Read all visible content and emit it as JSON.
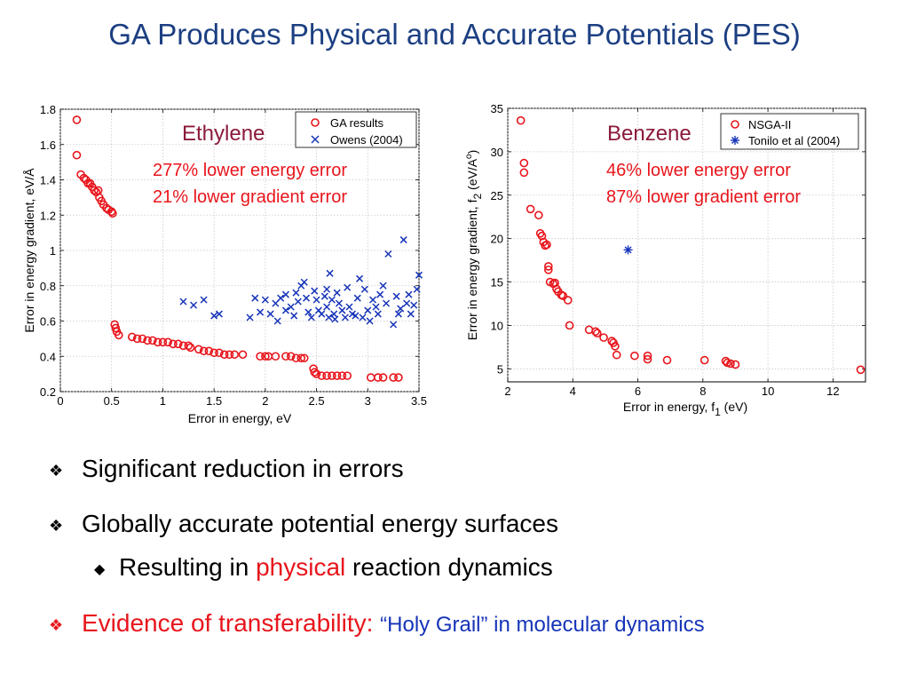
{
  "slide": {
    "title": "GA Produces Physical and Accurate Potentials (PES)"
  },
  "bullets": [
    {
      "text": "Significant reduction in errors"
    },
    {
      "text": "Globally accurate potential energy surfaces"
    },
    {
      "sub_pre": "Resulting in ",
      "sub_highlight": "physical",
      "sub_post": " reaction dynamics"
    },
    {
      "red_text": "Evidence of transferability:",
      "blue_text": "“Holy Grail” in molecular dynamics"
    }
  ],
  "colors": {
    "title": "#1c3f82",
    "red": "#e8151c",
    "blue": "#1634b8",
    "ga_marker": "#e8151c",
    "ref_marker": "#1634b8"
  },
  "chart_data": [
    {
      "type": "scatter",
      "name_label": "Ethylene",
      "annotations": [
        "277% lower energy error",
        "21% lower gradient error"
      ],
      "xlabel": "Error in energy, eV",
      "ylabel": "Error in energy gradient, eV/Å",
      "xlim": [
        0,
        3.5
      ],
      "ylim": [
        0.2,
        1.8
      ],
      "xticks": [
        "0",
        "0.5",
        "1",
        "1.5",
        "2",
        "2.5",
        "3",
        "3.5"
      ],
      "yticks": [
        "0.2",
        "0.4",
        "0.6",
        "0.8",
        "1",
        "1.2",
        "1.4",
        "1.6",
        "1.8"
      ],
      "grid": true,
      "legend_position": "top-right",
      "series": [
        {
          "name": "GA results",
          "marker": "circle",
          "color": "#e8151c",
          "points": [
            [
              0.16,
              1.74
            ],
            [
              0.16,
              1.54
            ],
            [
              0.2,
              1.43
            ],
            [
              0.23,
              1.41
            ],
            [
              0.25,
              1.4
            ],
            [
              0.27,
              1.38
            ],
            [
              0.29,
              1.38
            ],
            [
              0.31,
              1.36
            ],
            [
              0.33,
              1.34
            ],
            [
              0.35,
              1.33
            ],
            [
              0.37,
              1.34
            ],
            [
              0.38,
              1.3
            ],
            [
              0.4,
              1.28
            ],
            [
              0.42,
              1.26
            ],
            [
              0.45,
              1.24
            ],
            [
              0.47,
              1.23
            ],
            [
              0.5,
              1.22
            ],
            [
              0.51,
              1.21
            ],
            [
              0.53,
              0.58
            ],
            [
              0.54,
              0.56
            ],
            [
              0.55,
              0.54
            ],
            [
              0.57,
              0.52
            ],
            [
              0.7,
              0.51
            ],
            [
              0.75,
              0.5
            ],
            [
              0.8,
              0.5
            ],
            [
              0.85,
              0.49
            ],
            [
              0.9,
              0.49
            ],
            [
              0.95,
              0.48
            ],
            [
              1.0,
              0.48
            ],
            [
              1.05,
              0.48
            ],
            [
              1.1,
              0.47
            ],
            [
              1.15,
              0.47
            ],
            [
              1.2,
              0.46
            ],
            [
              1.25,
              0.46
            ],
            [
              1.27,
              0.45
            ],
            [
              1.35,
              0.44
            ],
            [
              1.4,
              0.43
            ],
            [
              1.45,
              0.43
            ],
            [
              1.5,
              0.42
            ],
            [
              1.55,
              0.42
            ],
            [
              1.6,
              0.41
            ],
            [
              1.65,
              0.41
            ],
            [
              1.7,
              0.41
            ],
            [
              1.78,
              0.41
            ],
            [
              1.95,
              0.4
            ],
            [
              2.0,
              0.4
            ],
            [
              2.03,
              0.4
            ],
            [
              2.1,
              0.4
            ],
            [
              2.2,
              0.4
            ],
            [
              2.25,
              0.4
            ],
            [
              2.3,
              0.39
            ],
            [
              2.35,
              0.39
            ],
            [
              2.38,
              0.39
            ],
            [
              2.47,
              0.33
            ],
            [
              2.48,
              0.31
            ],
            [
              2.5,
              0.3
            ],
            [
              2.55,
              0.29
            ],
            [
              2.6,
              0.29
            ],
            [
              2.65,
              0.29
            ],
            [
              2.7,
              0.29
            ],
            [
              2.75,
              0.29
            ],
            [
              2.8,
              0.29
            ],
            [
              3.03,
              0.28
            ],
            [
              3.1,
              0.28
            ],
            [
              3.15,
              0.28
            ],
            [
              3.25,
              0.28
            ],
            [
              3.3,
              0.28
            ]
          ]
        },
        {
          "name": "Owens (2004)",
          "marker": "x",
          "color": "#1634b8",
          "points": [
            [
              1.2,
              0.71
            ],
            [
              1.3,
              0.69
            ],
            [
              1.4,
              0.72
            ],
            [
              1.5,
              0.63
            ],
            [
              1.55,
              0.64
            ],
            [
              1.85,
              0.62
            ],
            [
              1.9,
              0.73
            ],
            [
              1.95,
              0.65
            ],
            [
              2.0,
              0.72
            ],
            [
              2.05,
              0.64
            ],
            [
              2.1,
              0.7
            ],
            [
              2.12,
              0.6
            ],
            [
              2.15,
              0.73
            ],
            [
              2.2,
              0.66
            ],
            [
              2.2,
              0.75
            ],
            [
              2.25,
              0.68
            ],
            [
              2.28,
              0.63
            ],
            [
              2.3,
              0.76
            ],
            [
              2.32,
              0.71
            ],
            [
              2.35,
              0.8
            ],
            [
              2.38,
              0.82
            ],
            [
              2.4,
              0.73
            ],
            [
              2.42,
              0.65
            ],
            [
              2.45,
              0.62
            ],
            [
              2.48,
              0.77
            ],
            [
              2.5,
              0.72
            ],
            [
              2.52,
              0.66
            ],
            [
              2.55,
              0.64
            ],
            [
              2.58,
              0.74
            ],
            [
              2.6,
              0.78
            ],
            [
              2.6,
              0.68
            ],
            [
              2.62,
              0.62
            ],
            [
              2.63,
              0.87
            ],
            [
              2.65,
              0.72
            ],
            [
              2.67,
              0.64
            ],
            [
              2.68,
              0.61
            ],
            [
              2.7,
              0.76
            ],
            [
              2.72,
              0.7
            ],
            [
              2.75,
              0.66
            ],
            [
              2.78,
              0.62
            ],
            [
              2.8,
              0.79
            ],
            [
              2.82,
              0.68
            ],
            [
              2.85,
              0.64
            ],
            [
              2.88,
              0.63
            ],
            [
              2.9,
              0.73
            ],
            [
              2.92,
              0.84
            ],
            [
              2.95,
              0.62
            ],
            [
              2.97,
              0.78
            ],
            [
              3.0,
              0.66
            ],
            [
              3.02,
              0.6
            ],
            [
              3.05,
              0.72
            ],
            [
              3.08,
              0.68
            ],
            [
              3.1,
              0.64
            ],
            [
              3.12,
              0.75
            ],
            [
              3.15,
              0.8
            ],
            [
              3.18,
              0.7
            ],
            [
              3.2,
              0.98
            ],
            [
              3.25,
              0.58
            ],
            [
              3.28,
              0.74
            ],
            [
              3.3,
              0.64
            ],
            [
              3.32,
              0.67
            ],
            [
              3.35,
              1.06
            ],
            [
              3.38,
              0.7
            ],
            [
              3.4,
              0.75
            ],
            [
              3.42,
              0.64
            ],
            [
              3.45,
              0.69
            ],
            [
              3.48,
              0.78
            ],
            [
              3.5,
              0.86
            ]
          ]
        }
      ]
    },
    {
      "type": "scatter",
      "name_label": "Benzene",
      "annotations": [
        "46% lower energy error",
        "87% lower gradient error"
      ],
      "xlabel_main": "Error in energy, f",
      "xlabel_sub": "1",
      "xlabel_post": " (eV)",
      "ylabel_main": "Error in energy gradient, f",
      "ylabel_sub": "2",
      "ylabel_post": " (eV/A",
      "ylabel_sup": "o",
      "ylabel_end": ")",
      "xlim": [
        2,
        13
      ],
      "ylim": [
        3.5,
        35
      ],
      "xticks_values": [
        2,
        4,
        6,
        8,
        10,
        12
      ],
      "xticks": [
        "2",
        "4",
        "6",
        "8",
        "10",
        "12"
      ],
      "yticks_values": [
        5,
        10,
        15,
        20,
        25,
        30,
        35
      ],
      "yticks": [
        "5",
        "10",
        "15",
        "20",
        "25",
        "30",
        "35"
      ],
      "grid": true,
      "legend_position": "top-right",
      "series": [
        {
          "name": "NSGA-II",
          "marker": "circle",
          "color": "#e8151c",
          "points": [
            [
              2.4,
              33.6
            ],
            [
              2.5,
              28.7
            ],
            [
              2.5,
              27.6
            ],
            [
              2.7,
              23.4
            ],
            [
              2.95,
              22.7
            ],
            [
              3.0,
              20.6
            ],
            [
              3.05,
              20.3
            ],
            [
              3.1,
              19.6
            ],
            [
              3.15,
              19.2
            ],
            [
              3.2,
              19.3
            ],
            [
              3.25,
              16.8
            ],
            [
              3.25,
              16.4
            ],
            [
              3.3,
              15.0
            ],
            [
              3.4,
              14.8
            ],
            [
              3.45,
              14.9
            ],
            [
              3.5,
              14.2
            ],
            [
              3.55,
              13.9
            ],
            [
              3.65,
              13.5
            ],
            [
              3.7,
              13.4
            ],
            [
              3.85,
              12.9
            ],
            [
              3.9,
              10.0
            ],
            [
              4.5,
              9.5
            ],
            [
              4.7,
              9.3
            ],
            [
              4.75,
              9.1
            ],
            [
              4.95,
              8.6
            ],
            [
              5.2,
              8.2
            ],
            [
              5.25,
              8.0
            ],
            [
              5.3,
              7.6
            ],
            [
              5.35,
              6.6
            ],
            [
              5.9,
              6.5
            ],
            [
              6.3,
              6.5
            ],
            [
              6.3,
              6.1
            ],
            [
              6.9,
              6.0
            ],
            [
              8.05,
              6.0
            ],
            [
              8.7,
              5.9
            ],
            [
              8.75,
              5.7
            ],
            [
              8.85,
              5.6
            ],
            [
              9.0,
              5.5
            ],
            [
              12.85,
              4.9
            ]
          ]
        },
        {
          "name": "Tonilo et al (2004)",
          "marker": "star",
          "color": "#1634b8",
          "points": [
            [
              5.7,
              18.7
            ]
          ]
        }
      ]
    }
  ]
}
